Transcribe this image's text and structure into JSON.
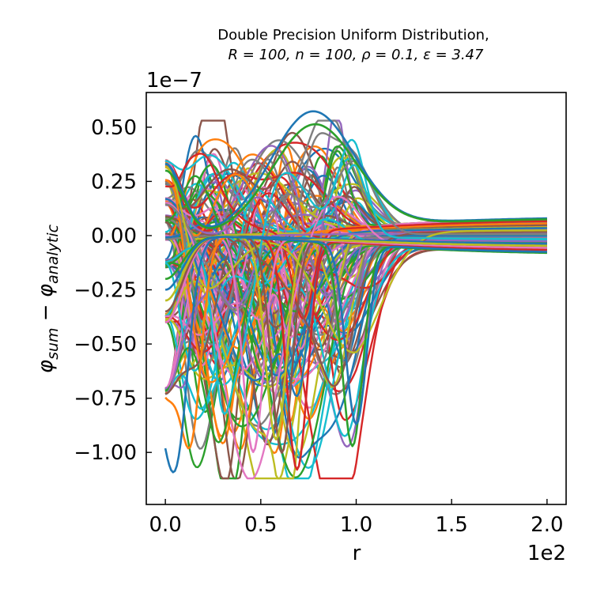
{
  "chart_data": {
    "type": "line",
    "title": "Double Precision Uniform Distribution,",
    "subtitle": "R = 100, n = 100, ρ = 0.1, ε = 3.47",
    "xlabel": "r",
    "ylabel_phi1": "φ",
    "ylabel_sub1": "sum",
    "ylabel_minus": " − ",
    "ylabel_phi2": "φ",
    "ylabel_sub2": "analytic",
    "x_offset_text": "1e2",
    "y_offset_text": "1e−7",
    "xlim": [
      -0.1,
      2.1
    ],
    "ylim": [
      -1.24,
      0.66
    ],
    "x_ticks": [
      0.0,
      0.5,
      1.0,
      1.5,
      2.0
    ],
    "x_tick_labels": [
      "0.0",
      "0.5",
      "1.0",
      "1.5",
      "2.0"
    ],
    "y_ticks": [
      0.5,
      0.25,
      0.0,
      -0.25,
      -0.5,
      -0.75,
      -1.0
    ],
    "y_tick_labels": [
      "0.50",
      "0.25",
      "0.00",
      "−0.25",
      "−0.50",
      "−0.75",
      "−1.00"
    ],
    "x_data_range": [
      0.0,
      2.0
    ],
    "grid": false,
    "legend": "none",
    "series_count": 160,
    "seed": 20240517,
    "colors": [
      "#1f77b4",
      "#ff7f0e",
      "#2ca02c",
      "#d62728",
      "#9467bd",
      "#8c564b",
      "#e377c2",
      "#7f7f7f",
      "#bcbd22",
      "#17becf"
    ],
    "highlight_series": [
      {
        "color": "#1f77b4",
        "start": 0.33,
        "peak_x": 0.77,
        "peak_y": 0.57,
        "end": 0.085
      },
      {
        "color": "#2ca02c",
        "start": 0.3,
        "peak_x": 0.78,
        "peak_y": 0.51,
        "end": 0.08
      },
      {
        "color": "#d62728",
        "start": -0.4,
        "dip_x": 0.69,
        "dip_y": -1.14,
        "end": -0.07
      },
      {
        "color": "#2ca02c",
        "start": -0.2,
        "dip_x": 0.98,
        "dip_y": -0.97,
        "end": -0.085
      },
      {
        "color": "#e377c2",
        "start": -0.4,
        "dip_x": 0.46,
        "dip_y": -1.07,
        "end": -0.06
      },
      {
        "color": "#ff7f0e",
        "start": -0.72,
        "dip_x": 0.13,
        "dip_y": -1.02,
        "end": -0.05
      },
      {
        "color": "#1f77b4",
        "start": -0.7,
        "dip_x": 0.05,
        "dip_y": -0.99,
        "end": -0.04
      },
      {
        "color": "#8c564b",
        "start": -0.35,
        "dip_x": 0.61,
        "dip_y": -1.06,
        "end": -0.05
      },
      {
        "color": "#bcbd22",
        "start": -0.3,
        "dip_x": 0.58,
        "dip_y": -0.99,
        "end": -0.05
      },
      {
        "color": "#1f77b4",
        "start": -0.25,
        "dip_x": 1.0,
        "dip_y": -0.88,
        "end": -0.08
      }
    ]
  }
}
